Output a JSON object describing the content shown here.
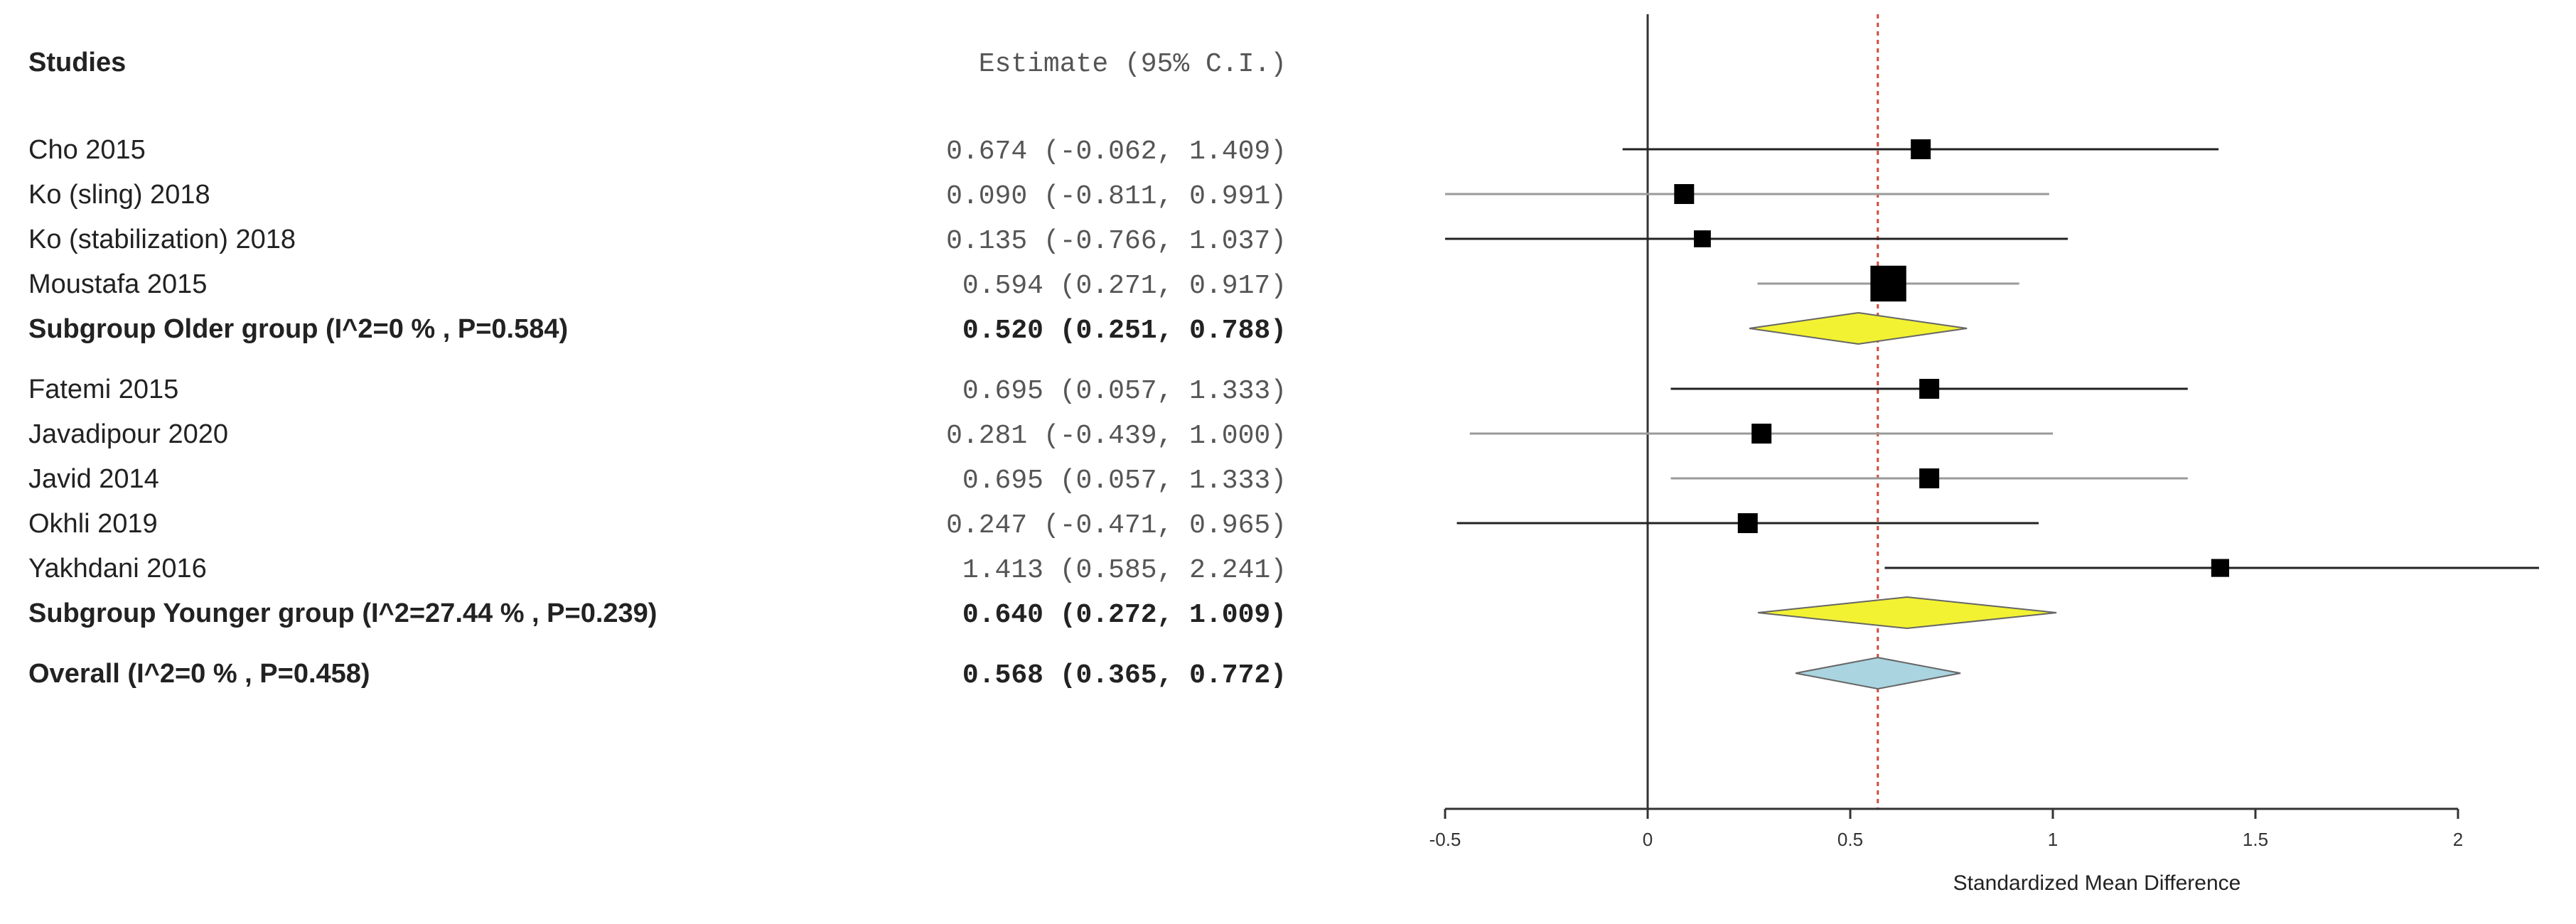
{
  "chart_data": {
    "type": "forest",
    "headers": {
      "studies": "Studies",
      "estimate": "Estimate (95% C.I.)"
    },
    "xlabel": "Standardized Mean Difference",
    "xlim": [
      -0.5,
      2.2
    ],
    "ticks": [
      -0.5,
      0,
      0.5,
      1,
      1.5,
      2
    ],
    "tick_labels": [
      "-0.5",
      "0",
      "0.5",
      "1",
      "1.5",
      "2"
    ],
    "reference_line": 0,
    "overall_line": 0.568,
    "colors": {
      "older_diamond": "#f2f232",
      "younger_diamond": "#f2f232",
      "overall_diamond": "#aad4e0",
      "overall_line": "#d24a3a",
      "ci_dark": "#222222",
      "ci_light": "#9a9a9a"
    },
    "rows": [
      {
        "kind": "study",
        "label": "Cho 2015",
        "estimate": 0.674,
        "lower": -0.062,
        "upper": 1.409,
        "text": "0.674 (-0.062, 1.409)",
        "size": 1,
        "shade": "dark"
      },
      {
        "kind": "study",
        "label": "Ko (sling) 2018",
        "estimate": 0.09,
        "lower": -0.811,
        "upper": 0.991,
        "text": "0.090 (-0.811, 0.991)",
        "size": 1,
        "shade": "light"
      },
      {
        "kind": "study",
        "label": "Ko (stabilization) 2018",
        "estimate": 0.135,
        "lower": -0.766,
        "upper": 1.037,
        "text": "0.135 (-0.766, 1.037)",
        "size": 0.85,
        "shade": "dark"
      },
      {
        "kind": "study",
        "label": "Moustafa 2015",
        "estimate": 0.594,
        "lower": 0.271,
        "upper": 0.917,
        "text": "0.594 (0.271, 0.917)",
        "size": 1.8,
        "shade": "light"
      },
      {
        "kind": "subgroup",
        "label": "Subgroup Older group (I^2=0 % , P=0.584)",
        "estimate": 0.52,
        "lower": 0.251,
        "upper": 0.788,
        "text": "0.520 (0.251, 0.788)",
        "fill": "older_diamond"
      },
      {
        "kind": "spacer"
      },
      {
        "kind": "study",
        "label": "Fatemi 2015",
        "estimate": 0.695,
        "lower": 0.057,
        "upper": 1.333,
        "text": "0.695 (0.057, 1.333)",
        "size": 1,
        "shade": "dark"
      },
      {
        "kind": "study",
        "label": "Javadipour 2020",
        "estimate": 0.281,
        "lower": -0.439,
        "upper": 1.0,
        "text": "0.281 (-0.439, 1.000)",
        "size": 1,
        "shade": "light"
      },
      {
        "kind": "study",
        "label": "Javid 2014",
        "estimate": 0.695,
        "lower": 0.057,
        "upper": 1.333,
        "text": "0.695 (0.057, 1.333)",
        "size": 1,
        "shade": "light"
      },
      {
        "kind": "study",
        "label": "Okhli 2019",
        "estimate": 0.247,
        "lower": -0.471,
        "upper": 0.965,
        "text": "0.247 (-0.471, 0.965)",
        "size": 1,
        "shade": "dark"
      },
      {
        "kind": "study",
        "label": "Yakhdani  2016",
        "estimate": 1.413,
        "lower": 0.585,
        "upper": 2.241,
        "text": "1.413 (0.585, 2.241)",
        "size": 0.9,
        "shade": "dark"
      },
      {
        "kind": "subgroup",
        "label": "Subgroup Younger group (I^2=27.44 % , P=0.239)",
        "estimate": 0.64,
        "lower": 0.272,
        "upper": 1.009,
        "text": "0.640 (0.272, 1.009)",
        "fill": "younger_diamond"
      },
      {
        "kind": "spacer"
      },
      {
        "kind": "overall",
        "label": "Overall (I^2=0 % , P=0.458)",
        "estimate": 0.568,
        "lower": 0.365,
        "upper": 0.772,
        "text": "0.568 (0.365, 0.772)",
        "fill": "overall_diamond"
      }
    ]
  }
}
